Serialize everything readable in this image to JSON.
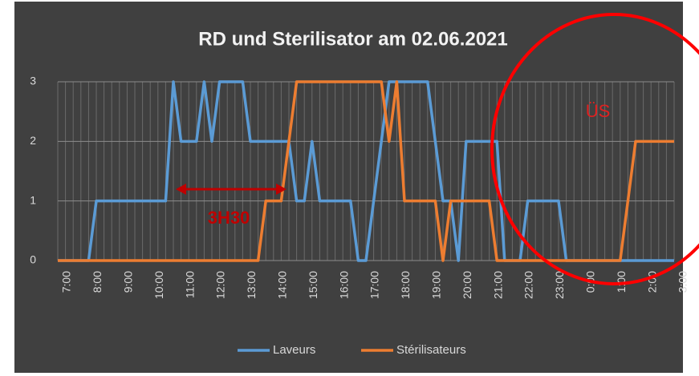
{
  "chart_data": {
    "type": "line",
    "title": "RD und Sterilisator am 02.06.2021",
    "categories": [
      "7:00",
      null,
      null,
      null,
      "8:00",
      null,
      null,
      null,
      "9:00",
      null,
      null,
      null,
      "10:00",
      null,
      null,
      null,
      "11:00",
      null,
      null,
      null,
      "12:00",
      null,
      null,
      null,
      "13:00",
      null,
      null,
      null,
      "14:00",
      null,
      null,
      null,
      "15:00",
      null,
      null,
      null,
      "16:00",
      null,
      null,
      null,
      "17:00",
      null,
      null,
      null,
      "18:00",
      null,
      null,
      null,
      "19:00",
      null,
      null,
      null,
      "20:00",
      null,
      null,
      null,
      "21:00",
      null,
      null,
      null,
      "22:00",
      null,
      null,
      null,
      "23:00",
      null,
      null,
      null,
      "0:00",
      null,
      null,
      null,
      "1:00",
      null,
      null,
      null,
      "2:00",
      null,
      null,
      null,
      "3:00"
    ],
    "series": [
      {
        "name": "Laveurs",
        "color": "#5b9bd5",
        "values": [
          0,
          0,
          0,
          0,
          0,
          1,
          1,
          1,
          1,
          1,
          1,
          1,
          1,
          1,
          1,
          3,
          2,
          2,
          2,
          3,
          2,
          3,
          3,
          3,
          3,
          2,
          2,
          2,
          2,
          2,
          2,
          1,
          1,
          2,
          1,
          1,
          1,
          1,
          1,
          0,
          0,
          1,
          2,
          3,
          3,
          3,
          3,
          3,
          3,
          2,
          1,
          1,
          0,
          2,
          2,
          2,
          2,
          2,
          0,
          0,
          0,
          1,
          1,
          1,
          1,
          1,
          0,
          0,
          0,
          0,
          0,
          0,
          0,
          0,
          0,
          0,
          0,
          0,
          0,
          0,
          0
        ]
      },
      {
        "name": "Stérilisateurs",
        "color": "#ed7d31",
        "values": [
          0,
          0,
          0,
          0,
          0,
          0,
          0,
          0,
          0,
          0,
          0,
          0,
          0,
          0,
          0,
          0,
          0,
          0,
          0,
          0,
          0,
          0,
          0,
          0,
          0,
          0,
          0,
          1,
          1,
          1,
          2,
          3,
          3,
          3,
          3,
          3,
          3,
          3,
          3,
          3,
          3,
          3,
          3,
          2,
          3,
          1,
          1,
          1,
          1,
          1,
          0,
          1,
          1,
          1,
          1,
          1,
          1,
          0,
          0,
          0,
          0,
          0,
          0,
          0,
          0,
          0,
          0,
          0,
          0,
          0,
          0,
          0,
          0,
          0,
          1,
          2,
          2,
          2,
          2,
          2,
          2
        ]
      }
    ],
    "ylim": [
      0,
      3
    ],
    "yticks": [
      0,
      1,
      2,
      3
    ],
    "grid": true,
    "legend": "bottom",
    "annotations": [
      "3H30",
      "ÜS"
    ]
  }
}
